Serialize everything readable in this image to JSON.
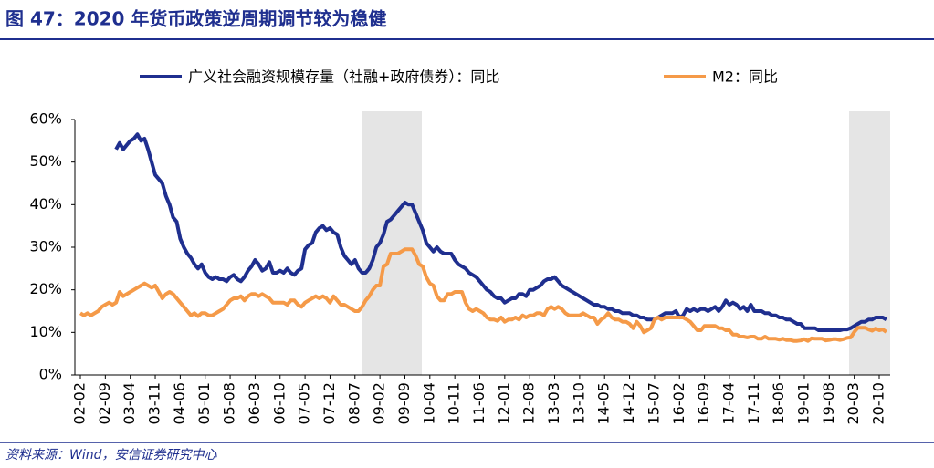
{
  "header": {
    "title": "图 47：2020 年货币政策逆周期调节较为稳健"
  },
  "chart_data": {
    "type": "line",
    "categories": [
      "02-02",
      null,
      null,
      null,
      null,
      null,
      null,
      "02-09",
      null,
      null,
      null,
      null,
      null,
      null,
      "03-04",
      null,
      null,
      null,
      null,
      null,
      null,
      "03-11",
      null,
      null,
      null,
      null,
      null,
      null,
      "04-06",
      null,
      null,
      null,
      null,
      null,
      null,
      "05-01",
      null,
      null,
      null,
      null,
      null,
      null,
      "05-08",
      null,
      null,
      null,
      null,
      null,
      null,
      "06-03",
      null,
      null,
      null,
      null,
      null,
      null,
      "06-10",
      null,
      null,
      null,
      null,
      null,
      null,
      "07-05",
      null,
      null,
      null,
      null,
      null,
      null,
      "07-12",
      null,
      null,
      null,
      null,
      null,
      null,
      "08-07",
      null,
      null,
      null,
      null,
      null,
      null,
      "09-02",
      null,
      null,
      null,
      null,
      null,
      null,
      "09-09",
      null,
      null,
      null,
      null,
      null,
      null,
      "10-04",
      null,
      null,
      null,
      null,
      null,
      null,
      "10-11",
      null,
      null,
      null,
      null,
      null,
      null,
      "11-06",
      null,
      null,
      null,
      null,
      null,
      null,
      "12-01",
      null,
      null,
      null,
      null,
      null,
      null,
      "12-08",
      null,
      null,
      null,
      null,
      null,
      null,
      "13-03",
      null,
      null,
      null,
      null,
      null,
      null,
      "13-10",
      null,
      null,
      null,
      null,
      null,
      null,
      "14-05",
      null,
      null,
      null,
      null,
      null,
      null,
      "14-12",
      null,
      null,
      null,
      null,
      null,
      null,
      "15-07",
      null,
      null,
      null,
      null,
      null,
      null,
      "16-02",
      null,
      null,
      null,
      null,
      null,
      null,
      "16-09",
      null,
      null,
      null,
      null,
      null,
      null,
      "17-04",
      null,
      null,
      null,
      null,
      null,
      null,
      "17-11",
      null,
      null,
      null,
      null,
      null,
      null,
      "18-06",
      null,
      null,
      null,
      null,
      null,
      null,
      "19-01",
      null,
      null,
      null,
      null,
      null,
      null,
      "19-08",
      null,
      null,
      null,
      null,
      null,
      null,
      "20-03",
      null,
      null,
      null,
      null,
      null,
      null,
      "20-10",
      null,
      null
    ],
    "series": [
      {
        "name": "广义社会融资规模存量（社融+政府债券）：同比",
        "color": "#1f2f8f",
        "values": [
          null,
          null,
          null,
          null,
          null,
          null,
          null,
          null,
          null,
          null,
          53,
          54.5,
          53,
          54,
          55,
          55.5,
          56.5,
          55,
          55.5,
          53,
          50,
          47,
          46,
          45,
          42,
          40,
          37,
          36,
          32,
          30,
          28.5,
          27.5,
          26,
          25,
          26,
          24,
          23,
          22.5,
          23,
          22.5,
          22.5,
          22,
          23,
          23.5,
          22.5,
          22,
          23,
          24.5,
          25.5,
          27,
          26,
          24.5,
          25,
          26.5,
          24,
          24,
          24.5,
          24,
          25,
          24,
          23.5,
          24.5,
          25,
          29.5,
          30.5,
          31,
          33.5,
          34.5,
          35,
          34,
          34.5,
          33.5,
          33,
          30,
          28,
          27,
          26,
          27,
          25,
          24,
          24,
          25,
          27,
          30,
          31,
          33,
          36,
          36.5,
          37.5,
          38.5,
          39.5,
          40.5,
          40,
          40,
          38,
          36,
          34,
          31,
          30,
          29,
          30,
          29,
          28.5,
          28.5,
          28.5,
          27,
          26,
          25.5,
          25,
          24,
          23.5,
          23,
          22,
          21,
          20,
          19.5,
          18.5,
          18,
          18,
          17,
          17.5,
          18,
          18,
          19,
          19,
          18.5,
          20,
          20,
          20.5,
          21,
          22,
          22.5,
          22.5,
          23,
          22,
          21,
          20.5,
          20,
          19.5,
          19,
          18.5,
          18,
          17.5,
          17,
          16.5,
          16.5,
          16,
          16,
          15.5,
          15.5,
          15,
          15,
          14.5,
          14.5,
          14.5,
          14,
          14,
          13.5,
          13.5,
          13,
          13,
          13,
          13.5,
          14,
          14.5,
          14.5,
          14.5,
          15,
          13.5,
          14,
          15.5,
          15,
          15.5,
          15,
          15.5,
          15.5,
          15,
          15.5,
          16,
          15,
          16,
          17.5,
          16.5,
          17,
          16.5,
          15.5,
          16,
          15,
          16.5,
          15,
          15,
          15,
          14.5,
          14.5,
          14,
          14,
          13.5,
          13.5,
          13,
          13,
          12.5,
          12,
          12,
          11,
          11,
          11,
          11,
          10.5,
          10.5,
          10.5,
          10.5,
          10.5,
          10.5,
          10.5,
          10.7,
          10.7,
          11,
          11.5,
          12,
          12.5,
          12.5,
          13,
          13,
          13.5,
          13.5,
          13.5,
          13
        ]
      },
      {
        "name": "M2：同比",
        "color": "#f59a48",
        "values": [
          14.5,
          14,
          14.5,
          14,
          14.5,
          15,
          16,
          16.5,
          17,
          16.5,
          17,
          19.5,
          18.5,
          19,
          19.5,
          20,
          20.5,
          21,
          21.5,
          21,
          20.5,
          21,
          19.5,
          18,
          19,
          19.5,
          19,
          18,
          17,
          16,
          15,
          14,
          14.5,
          13.8,
          14.5,
          14.5,
          14,
          14,
          14.5,
          15,
          15.5,
          16.5,
          17.5,
          18,
          18,
          18.5,
          17.5,
          18.5,
          19,
          19,
          18.5,
          19,
          18.5,
          18,
          17,
          17,
          17,
          17,
          16.5,
          17.5,
          17.5,
          16.5,
          16,
          17,
          17.5,
          18,
          18.5,
          18,
          18.5,
          18,
          17,
          18.5,
          17.5,
          16.5,
          16.5,
          16,
          15.5,
          15,
          15,
          16,
          17.5,
          18.5,
          20,
          21,
          21,
          25.5,
          26,
          28.5,
          28.5,
          28.5,
          29,
          29.5,
          29.5,
          29.5,
          28,
          26,
          25.5,
          23,
          21.5,
          21,
          18.5,
          17.5,
          17.5,
          19,
          19,
          19.5,
          19.5,
          19.5,
          17,
          15.5,
          15,
          15.5,
          15,
          14.5,
          13.5,
          13,
          13,
          12.7,
          13.5,
          12.5,
          13,
          13,
          13.5,
          13,
          14,
          13.5,
          14,
          14,
          14.5,
          14.5,
          14,
          15.5,
          16,
          15.5,
          16,
          15.5,
          14.5,
          14,
          14,
          14,
          14,
          14.5,
          14,
          13.5,
          13.5,
          12,
          13,
          13.5,
          14.5,
          13.5,
          13,
          13,
          12.5,
          12.5,
          12,
          11,
          12.5,
          11.5,
          10,
          10.5,
          11,
          13,
          13.5,
          13,
          13.5,
          13.5,
          13.5,
          13.5,
          13.5,
          13.5,
          13,
          12.5,
          11.5,
          10.5,
          10.5,
          11.5,
          11.5,
          11.5,
          11.5,
          11,
          11,
          10.5,
          10.5,
          9.5,
          9.5,
          9,
          9,
          8.8,
          9,
          9,
          8.5,
          8.5,
          9,
          8.5,
          8.5,
          8.5,
          8.3,
          8.5,
          8.2,
          8.2,
          8,
          8,
          8.1,
          8.4,
          8,
          8.6,
          8.5,
          8.5,
          8.5,
          8.1,
          8.2,
          8.4,
          8.4,
          8.2,
          8.4,
          8.7,
          8.8,
          10.1,
          11.1,
          11.1,
          11.1,
          10.7,
          10.4,
          10.9,
          10.5,
          10.7,
          10.1
        ]
      }
    ],
    "ylim": [
      0,
      60
    ],
    "yticks": [
      {
        "value": 0,
        "label": "0%"
      },
      {
        "value": 10,
        "label": "10%"
      },
      {
        "value": 20,
        "label": "20%"
      },
      {
        "value": 30,
        "label": "30%"
      },
      {
        "value": 40,
        "label": "40%"
      },
      {
        "value": 50,
        "label": "50%"
      },
      {
        "value": 60,
        "label": "60%"
      }
    ],
    "legend": "top"
  },
  "footer": {
    "source": "资料来源：Wind，安信证券研究中心"
  }
}
